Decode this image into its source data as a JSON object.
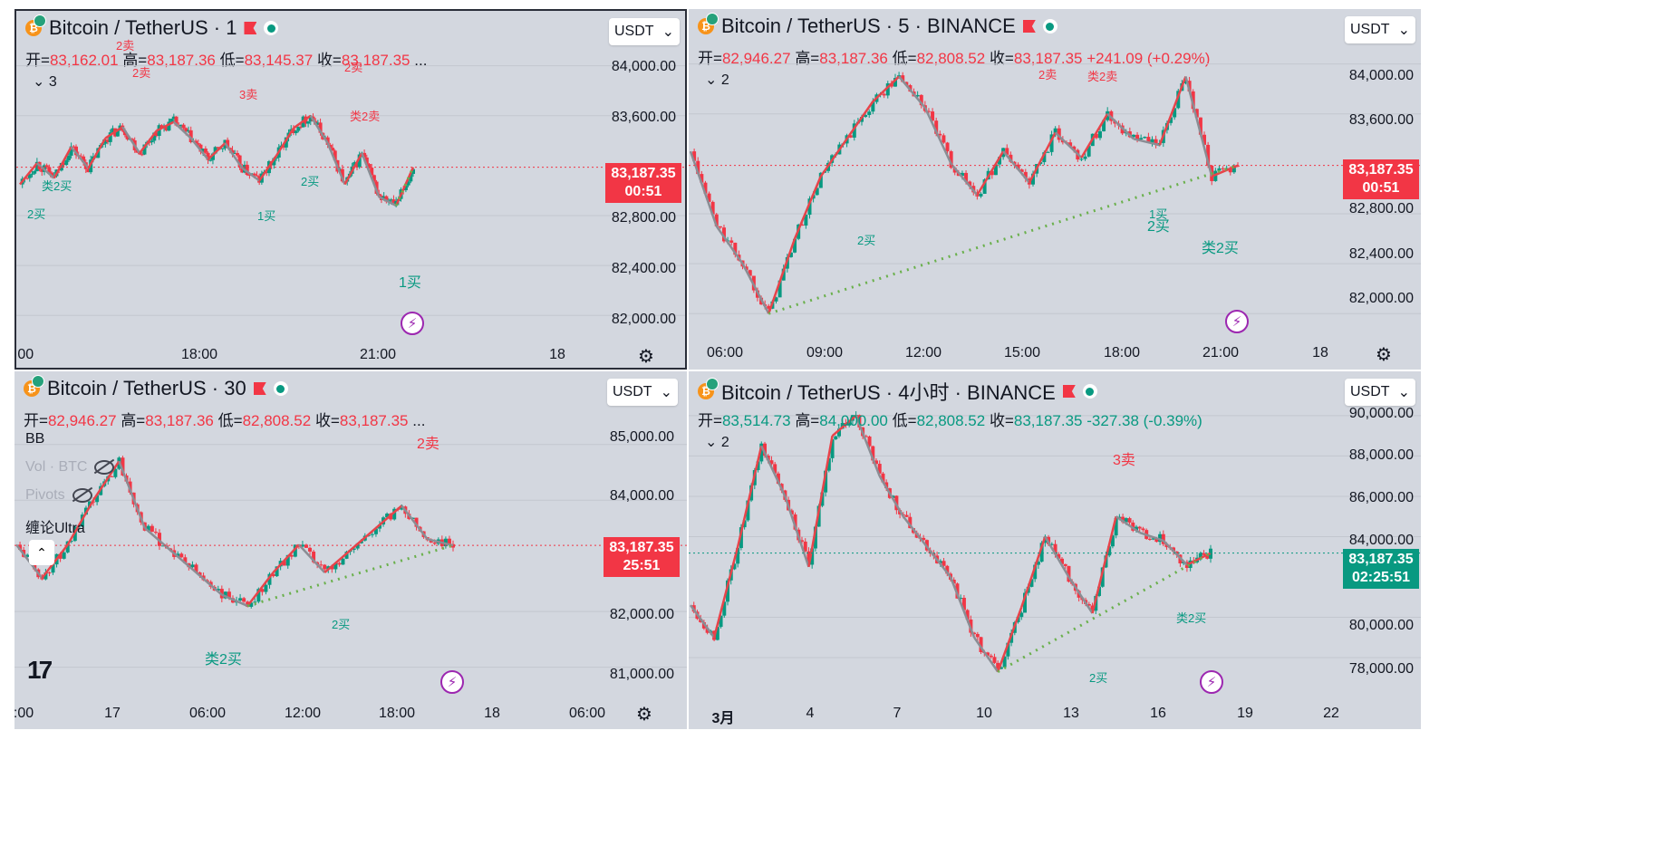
{
  "panes": [
    {
      "id": "p1",
      "title": "Bitcoin / TetherUS · 1",
      "ohlc": {
        "open_label": "开=",
        "open": "83,162.01",
        "high_label": "高=",
        "high": "83,187.36",
        "low_label": "低=",
        "low": "83,145.37",
        "close_label": "收=",
        "close": "83,187.35",
        "more": "..."
      },
      "collapse": "⌄ 3",
      "currency": "USDT",
      "price_tag": {
        "price": "83,187.35",
        "countdown": "00:51",
        "color": "#f23645"
      },
      "y_labels": [
        "84,000.00",
        "83,600.00",
        "82,800.00",
        "82,400.00",
        "82,000.00"
      ],
      "x_labels": [
        ":00",
        "18:00",
        "21:00",
        "18"
      ],
      "annotations": {
        "a1": "2卖",
        "a2": "2卖",
        "a3": "3卖",
        "a4": "2卖",
        "a5": "类2卖",
        "a6": "类2买",
        "a7": "2买",
        "a8": "2买",
        "a9": "1买",
        "a10": "1买"
      }
    },
    {
      "id": "p2",
      "title": "Bitcoin / TetherUS · 5 · BINANCE",
      "ohlc": {
        "open_label": "开=",
        "open": "82,946.27",
        "high_label": "高=",
        "high": "83,187.36",
        "low_label": "低=",
        "low": "82,808.52",
        "close_label": "收=",
        "close": "83,187.35",
        "change": "+241.09 (+0.29%)"
      },
      "collapse": "⌄ 2",
      "currency": "USDT",
      "price_tag": {
        "price": "83,187.35",
        "countdown": "00:51",
        "color": "#f23645"
      },
      "y_labels": [
        "84,000.00",
        "83,600.00",
        "82,800.00",
        "82,400.00",
        "82,000.00"
      ],
      "x_labels": [
        "06:00",
        "09:00",
        "12:00",
        "15:00",
        "18:00",
        "21:00",
        "18"
      ],
      "annotations": {
        "b1": "2卖",
        "b2": "类2卖",
        "b3": "2买",
        "b4": "1买",
        "b5": "2买",
        "b6": "类2买"
      }
    },
    {
      "id": "p3",
      "title": "Bitcoin / TetherUS · 30",
      "ohlc": {
        "open_label": "开=",
        "open": "82,946.27",
        "high_label": "高=",
        "high": "83,187.36",
        "low_label": "低=",
        "low": "82,808.52",
        "close_label": "收=",
        "close": "83,187.35",
        "more": "..."
      },
      "currency": "USDT",
      "price_tag": {
        "price": "83,187.35",
        "countdown": "25:51",
        "color": "#f23645"
      },
      "indicators": {
        "bb": "BB",
        "vol": "Vol · BTC",
        "pivots": "Pivots",
        "chan": "缠论Ultra"
      },
      "y_labels": [
        "85,000.00",
        "84,000.00",
        "82,000.00",
        "81,000.00"
      ],
      "x_labels": [
        ":00",
        "17",
        "06:00",
        "12:00",
        "18:00",
        "18",
        "06:00"
      ],
      "annotations": {
        "c1": "2卖",
        "c2": "2买",
        "c3": "类2买"
      }
    },
    {
      "id": "p4",
      "title": "Bitcoin / TetherUS · 4小时 · BINANCE",
      "ohlc": {
        "open_label": "开=",
        "open": "83,514.73",
        "high_label": "高=",
        "high": "84,000.00",
        "low_label": "低=",
        "low": "82,808.52",
        "close_label": "收=",
        "close": "83,187.35",
        "change": "-327.38 (-0.39%)"
      },
      "collapse": "⌄ 2",
      "currency": "USDT",
      "price_tag": {
        "price": "83,187.35",
        "countdown": "02:25:51",
        "color": "#089981"
      },
      "y_labels": [
        "90,000.00",
        "88,000.00",
        "86,000.00",
        "84,000.00",
        "80,000.00",
        "78,000.00"
      ],
      "x_labels": [
        "3月",
        "4",
        "7",
        "10",
        "13",
        "16",
        "19",
        "22"
      ],
      "annotations": {
        "d1": "3卖",
        "d2": "类2买",
        "d3": "2买"
      }
    }
  ],
  "colors": {
    "up": "#089981",
    "down": "#f23645",
    "stroke_blue": "#5b9bd5",
    "stroke_red": "#e8434a",
    "stroke_gray": "#8a8d94",
    "dotted_green": "#6ab04c",
    "box_blue": "#2962ff",
    "zone_yellow": "#f5c842"
  },
  "icons": {
    "bolt": "lightning-icon",
    "gear": "settings-icon",
    "logo": "tradingview-logo"
  },
  "logo_text": "17",
  "chart_data": [
    {
      "type": "line",
      "title": "Bitcoin / TetherUS · 1",
      "ylim": [
        81900,
        84150
      ],
      "y_ticks": [
        84000,
        83600,
        82800,
        82400,
        82000
      ],
      "series": [
        {
          "name": "close",
          "values": [
            83050,
            83220,
            83100,
            83350,
            83180,
            83420,
            83510,
            83300,
            83480,
            83550,
            83420,
            83250,
            83380,
            83180,
            83080,
            83280,
            83500,
            83600,
            83380,
            83050,
            83300,
            82950,
            82880,
            83187
          ]
        }
      ],
      "last": 83187.35
    },
    {
      "type": "line",
      "title": "Bitcoin / TetherUS · 5 · BINANCE",
      "ylim": [
        81900,
        84150
      ],
      "y_ticks": [
        84000,
        83600,
        82800,
        82400,
        82000
      ],
      "series": [
        {
          "name": "close",
          "values": [
            83300,
            82700,
            82400,
            82000,
            82600,
            83100,
            83400,
            83700,
            83900,
            83650,
            83200,
            82950,
            83300,
            83050,
            83450,
            83250,
            83600,
            83400,
            83350,
            83900,
            83100,
            83187
          ]
        }
      ],
      "last": 83187.35
    },
    {
      "type": "line",
      "title": "Bitcoin / TetherUS · 30",
      "ylim": [
        80700,
        85500
      ],
      "y_ticks": [
        85000,
        84000,
        82000,
        81000
      ],
      "series": [
        {
          "name": "close",
          "values": [
            83200,
            82600,
            83200,
            84000,
            84700,
            83500,
            83100,
            82700,
            82300,
            82100,
            82700,
            83200,
            82700,
            83100,
            83500,
            83900,
            83300,
            83187
          ]
        }
      ],
      "last": 83187.35
    },
    {
      "type": "line",
      "title": "Bitcoin / TetherUS · 4小时 · BINANCE",
      "ylim": [
        76700,
        90400
      ],
      "y_ticks": [
        90000,
        88000,
        86000,
        84000,
        80000,
        78000
      ],
      "series": [
        {
          "name": "close",
          "values": [
            80600,
            79000,
            83500,
            88500,
            86000,
            82500,
            89000,
            90000,
            87000,
            85000,
            83500,
            82000,
            79000,
            77300,
            80500,
            84000,
            82000,
            80200,
            85000,
            84200,
            83800,
            82600,
            83187
          ]
        }
      ],
      "last": 83187.35
    }
  ]
}
